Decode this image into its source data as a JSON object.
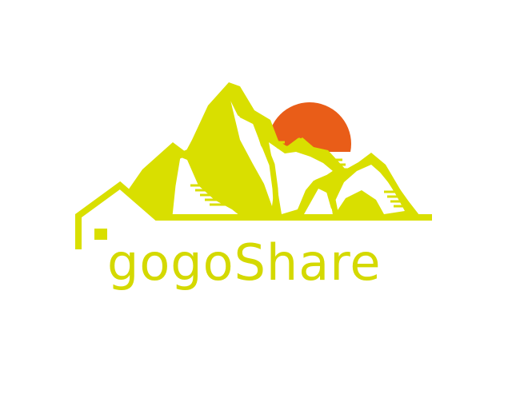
{
  "brand": {
    "name": "gogoShare"
  },
  "colors": {
    "mountain": "#d9df00",
    "sun": "#e95d18",
    "text": "#d4d900",
    "background": "#ffffff"
  },
  "icons": {
    "logo": "mountain-house-sun-logo"
  }
}
